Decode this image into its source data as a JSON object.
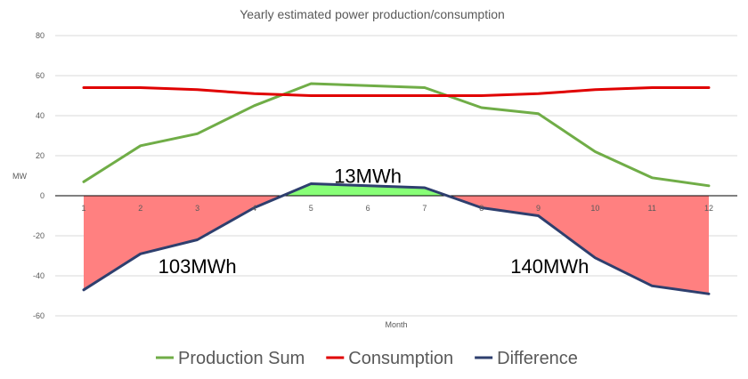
{
  "chart_data": {
    "type": "line",
    "title": "Yearly estimated power production/consumption",
    "xlabel": "Month",
    "ylabel": "MW",
    "x": [
      1,
      2,
      3,
      4,
      5,
      6,
      7,
      8,
      9,
      10,
      11,
      12
    ],
    "ylim": [
      -60,
      80
    ],
    "ytick_step": 20,
    "grid": true,
    "legend_position": "bottom",
    "series": [
      {
        "name": "Production Sum",
        "color": "#70ad47",
        "values": [
          7,
          25,
          31,
          45,
          56,
          55,
          54,
          44,
          41,
          22,
          9,
          5
        ]
      },
      {
        "name": "Consumption",
        "color": "#e00000",
        "values": [
          54,
          54,
          53,
          51,
          50,
          50,
          50,
          50,
          51,
          53,
          54,
          54
        ]
      },
      {
        "name": "Difference",
        "color": "#2e3f6e",
        "values": [
          -47,
          -29,
          -22,
          -6,
          6,
          5,
          4,
          -6,
          -10,
          -31,
          -45,
          -49
        ]
      }
    ],
    "fills": {
      "negative_color": "#ff8080",
      "positive_color": "#88ff77"
    },
    "annotations": [
      {
        "text": "13MWh",
        "x": 6,
        "y": 10
      },
      {
        "text": "103MWh",
        "x": 3,
        "y": -35
      },
      {
        "text": "140MWh",
        "x": 9.2,
        "y": -35
      }
    ]
  }
}
